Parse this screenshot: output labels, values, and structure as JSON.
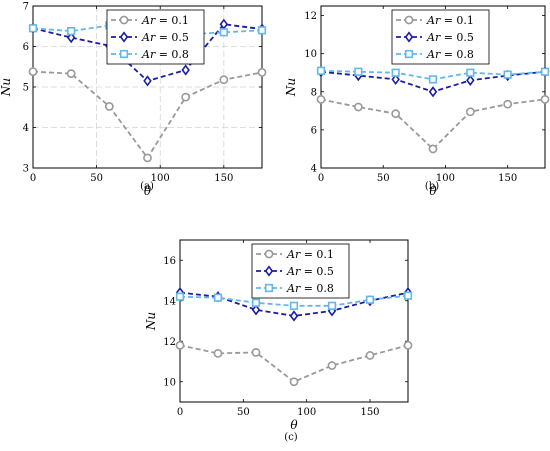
{
  "chart_data": [
    {
      "type": "line",
      "caption": "(a)",
      "xlabel": "θ",
      "ylabel": "Nu",
      "xlim": [
        0,
        180
      ],
      "ylim": [
        3,
        7
      ],
      "xticks": [
        0,
        50,
        100,
        150
      ],
      "yticks": [
        3,
        4,
        5,
        6,
        7
      ],
      "grid": true,
      "legend_position": "top-center",
      "x": [
        0,
        30,
        60,
        90,
        120,
        150,
        180
      ],
      "series": [
        {
          "name": "Ar = 0.1",
          "name_var": "Ar",
          "name_value": "= 0.1",
          "color": "#999999",
          "marker": "circle",
          "values": [
            5.38,
            5.33,
            4.52,
            3.25,
            4.75,
            5.18,
            5.36
          ]
        },
        {
          "name": "Ar = 0.5",
          "name_var": "Ar",
          "name_value": "= 0.5",
          "color": "#1c1ca4",
          "marker": "diamond",
          "values": [
            6.45,
            6.22,
            6.02,
            5.15,
            5.42,
            6.55,
            6.43
          ]
        },
        {
          "name": "Ar = 0.8",
          "name_var": "Ar",
          "name_value": "= 0.8",
          "color": "#63b8ea",
          "marker": "square",
          "values": [
            6.45,
            6.38,
            6.52,
            6.0,
            6.3,
            6.35,
            6.4
          ]
        }
      ]
    },
    {
      "type": "line",
      "caption": "(b)",
      "xlabel": "θ",
      "ylabel": "Nu",
      "xlim": [
        0,
        180
      ],
      "ylim": [
        4,
        12.5
      ],
      "xticks": [
        0,
        50,
        100,
        150
      ],
      "yticks": [
        4,
        6,
        8,
        10,
        12
      ],
      "grid": false,
      "legend_position": "top-center",
      "x": [
        0,
        30,
        60,
        90,
        120,
        150,
        180
      ],
      "series": [
        {
          "name": "Ar = 0.1",
          "name_var": "Ar",
          "name_value": "= 0.1",
          "color": "#999999",
          "marker": "circle",
          "values": [
            7.6,
            7.2,
            6.85,
            5.0,
            6.95,
            7.35,
            7.6
          ]
        },
        {
          "name": "Ar = 0.5",
          "name_var": "Ar",
          "name_value": "= 0.5",
          "color": "#1c1ca4",
          "marker": "diamond",
          "values": [
            9.05,
            8.85,
            8.65,
            8.0,
            8.6,
            8.85,
            9.05
          ]
        },
        {
          "name": "Ar = 0.8",
          "name_var": "Ar",
          "name_value": "= 0.8",
          "color": "#63b8ea",
          "marker": "square",
          "values": [
            9.1,
            9.05,
            9.0,
            8.65,
            9.0,
            8.9,
            9.05
          ]
        }
      ]
    },
    {
      "type": "line",
      "caption": "(c)",
      "xlabel": "θ",
      "ylabel": "Nu",
      "xlim": [
        0,
        180
      ],
      "ylim": [
        9,
        17
      ],
      "xticks": [
        0,
        50,
        100,
        150
      ],
      "yticks": [
        10,
        12,
        14,
        16
      ],
      "grid": false,
      "legend_position": "top-center",
      "x": [
        0,
        30,
        60,
        90,
        120,
        150,
        180
      ],
      "series": [
        {
          "name": "Ar = 0.1",
          "name_var": "Ar",
          "name_value": "= 0.1",
          "color": "#999999",
          "marker": "circle",
          "values": [
            11.8,
            11.4,
            11.45,
            10.0,
            10.8,
            11.3,
            11.8
          ]
        },
        {
          "name": "Ar = 0.5",
          "name_var": "Ar",
          "name_value": "= 0.5",
          "color": "#1c1ca4",
          "marker": "diamond",
          "values": [
            14.4,
            14.2,
            13.55,
            13.25,
            13.5,
            14.0,
            14.4
          ]
        },
        {
          "name": "Ar = 0.8",
          "name_var": "Ar",
          "name_value": "= 0.8",
          "color": "#63b8ea",
          "marker": "square",
          "values": [
            14.2,
            14.15,
            13.9,
            13.75,
            13.75,
            14.05,
            14.25
          ]
        }
      ]
    }
  ]
}
